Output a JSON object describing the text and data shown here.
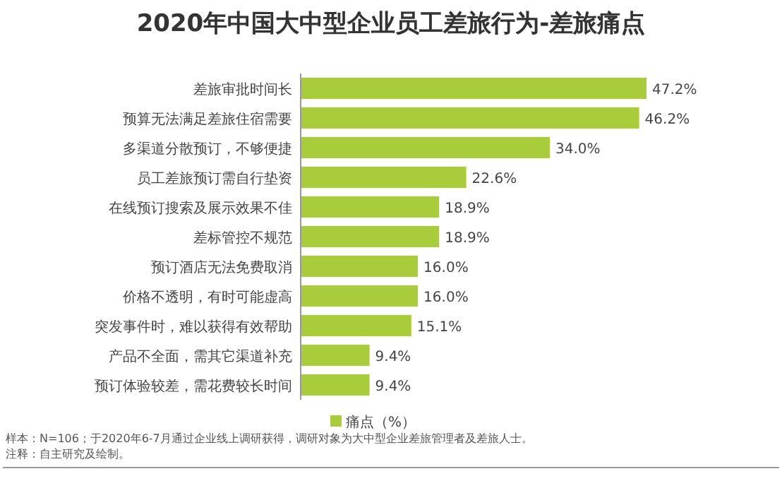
{
  "chart_data": {
    "type": "bar",
    "orientation": "horizontal",
    "title": "2020年中国大中型企业员工差旅行为-差旅痛点",
    "categories": [
      "差旅审批时间长",
      "预算无法满足差旅住宿需要",
      "多渠道分散预订，不够便捷",
      "员工差旅预订需自行垫资",
      "在线预订搜索及展示效果不佳",
      "差标管控不规范",
      "预订酒店无法免费取消",
      "价格不透明，有时可能虚高",
      "突发事件时，难以获得有效帮助",
      "产品不全面，需其它渠道补充",
      "预订体验较差，需花费较长时间"
    ],
    "series": [
      {
        "name": "痛点（%）",
        "color": "#a9cc3a",
        "values": [
          47.2,
          46.2,
          34.0,
          22.6,
          18.9,
          18.9,
          16.0,
          16.0,
          15.1,
          9.4,
          9.4
        ],
        "value_labels": [
          "47.2%",
          "46.2%",
          "34.0%",
          "22.6%",
          "18.9%",
          "18.9%",
          "16.0%",
          "16.0%",
          "15.1%",
          "9.4%",
          "9.4%"
        ]
      }
    ],
    "legend": "bottom",
    "annotations": [
      "样本：N=106；于2020年6-7月通过企业线上调研获得，调研对象为大中型企业差旅管理者及差旅人士。",
      "注释：自主研究及绘制。"
    ]
  }
}
